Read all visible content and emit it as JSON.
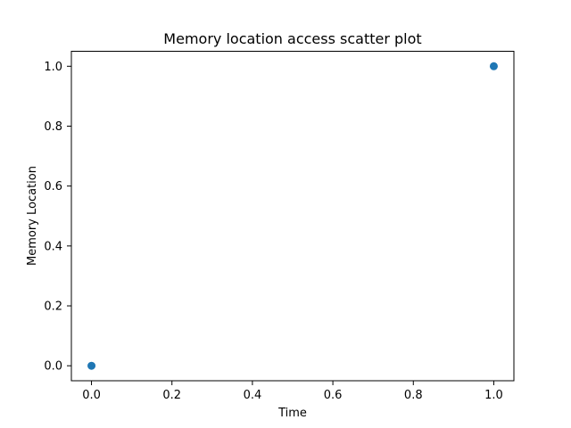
{
  "chart_data": {
    "type": "scatter",
    "title": "Memory location access scatter plot",
    "xlabel": "Time",
    "ylabel": "Memory Location",
    "xlim": [
      -0.05,
      1.05
    ],
    "ylim": [
      -0.05,
      1.05
    ],
    "xticks": [
      0.0,
      0.2,
      0.4,
      0.6,
      0.8,
      1.0
    ],
    "yticks": [
      0.0,
      0.2,
      0.4,
      0.6,
      0.8,
      1.0
    ],
    "xtick_labels": [
      "0.0",
      "0.2",
      "0.4",
      "0.6",
      "0.8",
      "1.0"
    ],
    "ytick_labels": [
      "0.0",
      "0.2",
      "0.4",
      "0.6",
      "0.8",
      "1.0"
    ],
    "grid": false,
    "series": [
      {
        "x": [
          0,
          1
        ],
        "y": [
          0,
          1
        ],
        "color": "#1f77b4"
      }
    ]
  }
}
